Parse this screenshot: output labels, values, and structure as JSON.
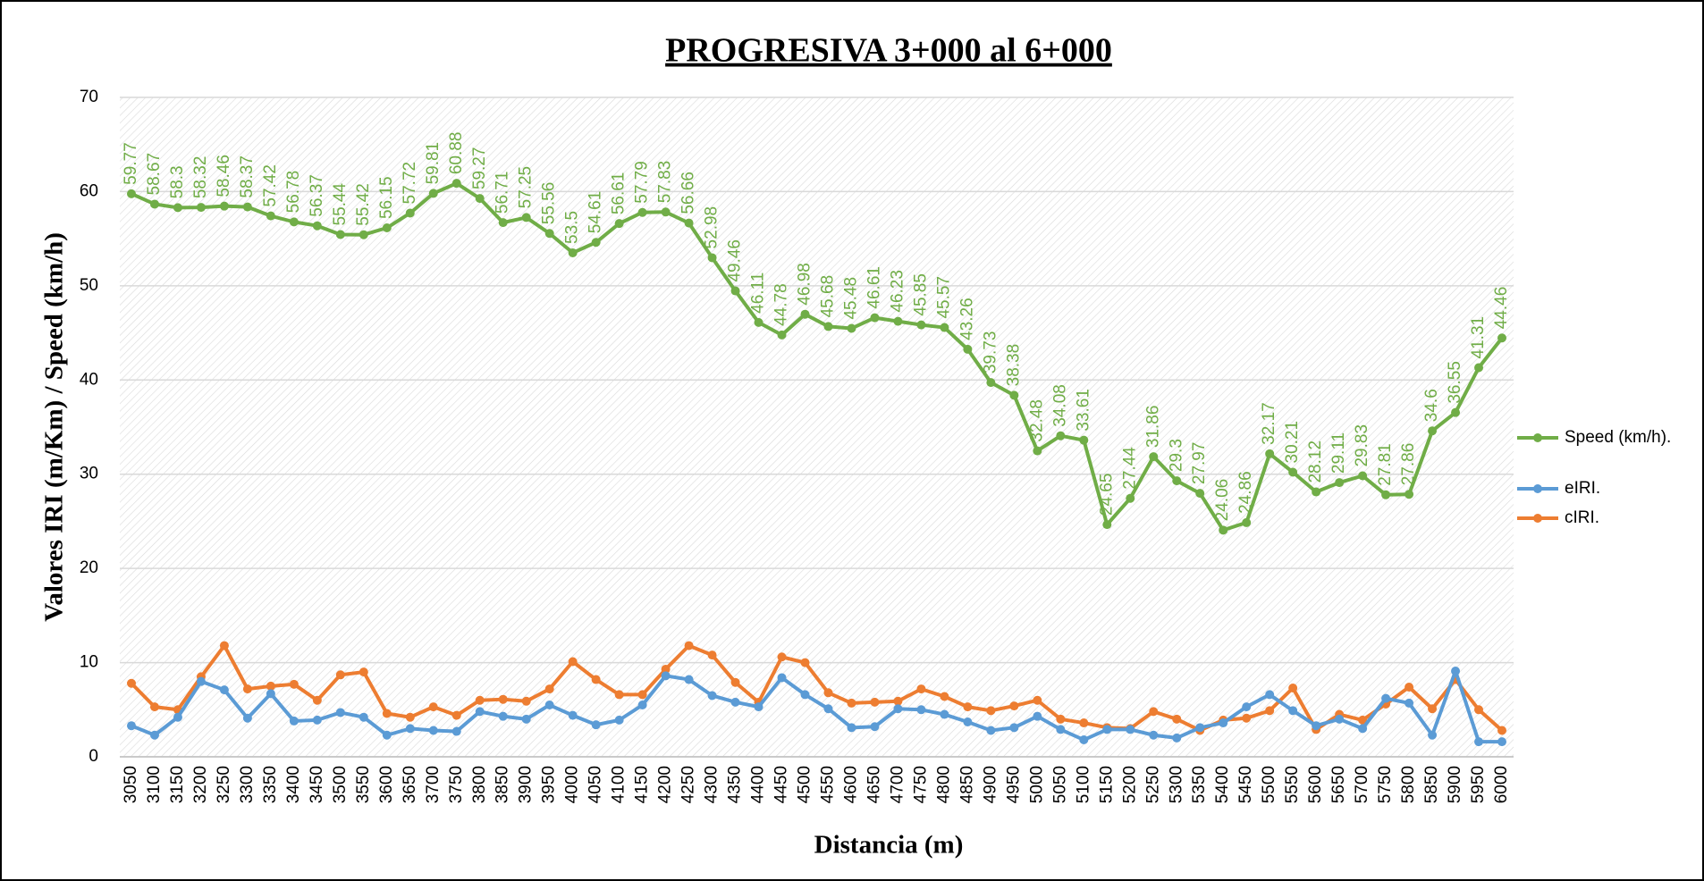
{
  "chart_data": {
    "type": "line",
    "title": "PROGRESIVA 3+000 al 6+000",
    "x_label": "Distancia (m)",
    "y_label": "Valores IRI (m/Km) / Speed (km/h)",
    "categories": [
      3050,
      3100,
      3150,
      3200,
      3250,
      3300,
      3350,
      3400,
      3450,
      3500,
      3550,
      3600,
      3650,
      3700,
      3750,
      3800,
      3850,
      3900,
      3950,
      4000,
      4050,
      4100,
      4150,
      4200,
      4250,
      4300,
      4350,
      4400,
      4450,
      4500,
      4550,
      4600,
      4650,
      4700,
      4750,
      4800,
      4850,
      4900,
      4950,
      5000,
      5050,
      5100,
      5150,
      5200,
      5250,
      5300,
      5350,
      5400,
      5450,
      5500,
      5550,
      5600,
      5650,
      5700,
      5750,
      5800,
      5850,
      5900,
      5950,
      6000
    ],
    "series": [
      {
        "name": "Speed (km/h).",
        "color": "#70ad47",
        "data_labels": true,
        "values": [
          59.77,
          58.67,
          58.3,
          58.32,
          58.46,
          58.37,
          57.42,
          56.78,
          56.37,
          55.44,
          55.42,
          56.15,
          57.72,
          59.81,
          60.88,
          59.27,
          56.71,
          57.25,
          55.56,
          53.5,
          54.61,
          56.61,
          57.79,
          57.83,
          56.66,
          52.98,
          49.46,
          46.11,
          44.78,
          46.98,
          45.68,
          45.48,
          46.61,
          46.23,
          45.85,
          45.57,
          43.26,
          39.73,
          38.38,
          32.48,
          34.08,
          33.61,
          24.65,
          27.44,
          31.86,
          29.3,
          27.97,
          24.06,
          24.86,
          32.17,
          30.21,
          28.12,
          29.11,
          29.83,
          27.81,
          27.86,
          34.6,
          36.55,
          41.31,
          44.46
        ]
      },
      {
        "name": "eIRI.",
        "color": "#5b9bd5",
        "values": [
          3.3,
          2.3,
          4.2,
          8.0,
          7.1,
          4.1,
          6.7,
          3.8,
          3.9,
          4.7,
          4.2,
          2.3,
          3.0,
          2.8,
          2.7,
          4.8,
          4.3,
          4.0,
          5.5,
          4.4,
          3.4,
          3.9,
          5.5,
          8.6,
          8.2,
          6.5,
          5.8,
          5.3,
          8.4,
          6.6,
          5.1,
          3.1,
          3.2,
          5.1,
          5.0,
          4.5,
          3.7,
          2.8,
          3.1,
          4.3,
          2.9,
          1.8,
          2.9,
          2.9,
          2.3,
          2.0,
          3.1,
          3.6,
          5.3,
          6.6,
          4.9,
          3.3,
          4.0,
          3.0,
          6.2,
          5.7,
          2.3,
          9.1,
          1.6,
          1.6
        ]
      },
      {
        "name": "cIRI.",
        "color": "#ed7d31",
        "values": [
          7.8,
          5.3,
          5.0,
          8.5,
          11.8,
          7.2,
          7.5,
          7.7,
          6.0,
          8.7,
          9.0,
          4.6,
          4.2,
          5.3,
          4.4,
          6.0,
          6.1,
          5.9,
          7.2,
          10.1,
          8.2,
          6.6,
          6.6,
          9.3,
          11.8,
          10.8,
          7.9,
          5.8,
          10.6,
          10.0,
          6.8,
          5.7,
          5.8,
          5.9,
          7.2,
          6.4,
          5.3,
          4.9,
          5.4,
          6.0,
          4.0,
          3.6,
          3.1,
          3.0,
          4.8,
          4.0,
          2.8,
          3.9,
          4.1,
          4.9,
          7.3,
          2.9,
          4.5,
          3.9,
          5.6,
          7.4,
          5.1,
          8.2,
          5.0,
          2.8
        ]
      }
    ],
    "ylim": [
      0,
      70
    ],
    "yticks": [
      0,
      10,
      20,
      30,
      40,
      50,
      60,
      70
    ],
    "grid": true,
    "legend": "right"
  }
}
